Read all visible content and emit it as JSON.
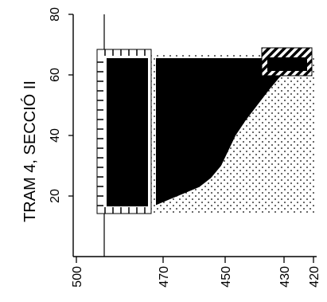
{
  "chart_data": {
    "type": "area",
    "ylabel": "TRAM 4, SECCIÓ II",
    "xlabel": "",
    "y_ticks": [
      "20",
      "40",
      "60",
      "80"
    ],
    "x_ticks": [
      "500",
      "470",
      "450",
      "430",
      "420"
    ],
    "ylim": [
      0,
      80
    ],
    "x_axis_position": "bottom (rotated labels)",
    "grid": false,
    "legend": "none",
    "blocks": [
      {
        "name": "left-rect",
        "pattern": "comb-left",
        "x_from": "500-470",
        "y": [
          14,
          66
        ]
      },
      {
        "name": "main-profile",
        "pattern": "dots",
        "x_from": "470",
        "x_to": "420",
        "y": [
          14,
          66
        ]
      },
      {
        "name": "top-right-block",
        "pattern": "diagonal-hatch",
        "x_from": "430",
        "x_to": "420",
        "y": [
          58,
          68
        ]
      }
    ],
    "profile_curve": {
      "x_rel": [
        0.0,
        0.1,
        0.2,
        0.3,
        0.38,
        0.45,
        0.5,
        0.55,
        0.62,
        0.7,
        0.78,
        0.85,
        0.92,
        1.0
      ],
      "y": [
        17,
        19,
        21,
        23,
        26,
        30,
        35,
        40,
        45,
        50,
        55,
        59,
        62,
        64
      ]
    },
    "colors": {
      "ink": "#000000",
      "paper": "#ffffff"
    }
  }
}
